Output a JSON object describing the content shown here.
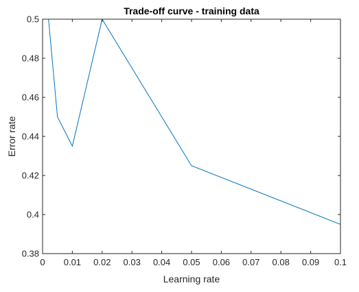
{
  "chart_data": {
    "type": "line",
    "title": "Trade-off curve - training data",
    "xlabel": "Learning rate",
    "ylabel": "Error rate",
    "xlim": [
      0,
      0.1
    ],
    "ylim": [
      0.38,
      0.5
    ],
    "xticks": [
      0,
      0.01,
      0.02,
      0.03,
      0.04,
      0.05,
      0.06,
      0.07,
      0.08,
      0.09,
      0.1
    ],
    "xtick_labels": [
      "0",
      "0.01",
      "0.02",
      "0.03",
      "0.04",
      "0.05",
      "0.06",
      "0.07",
      "0.08",
      "0.09",
      "0.1"
    ],
    "yticks": [
      0.38,
      0.4,
      0.42,
      0.44,
      0.46,
      0.48,
      0.5
    ],
    "ytick_labels": [
      "0.38",
      "0.4",
      "0.42",
      "0.44",
      "0.46",
      "0.48",
      "0.5"
    ],
    "grid": false,
    "series": [
      {
        "color": "#0072bd",
        "x": [
          0.001,
          0.002,
          0.005,
          0.01,
          0.02,
          0.05,
          0.1
        ],
        "y": [
          0.5,
          0.5,
          0.45,
          0.435,
          0.5,
          0.425,
          0.395
        ]
      }
    ]
  }
}
